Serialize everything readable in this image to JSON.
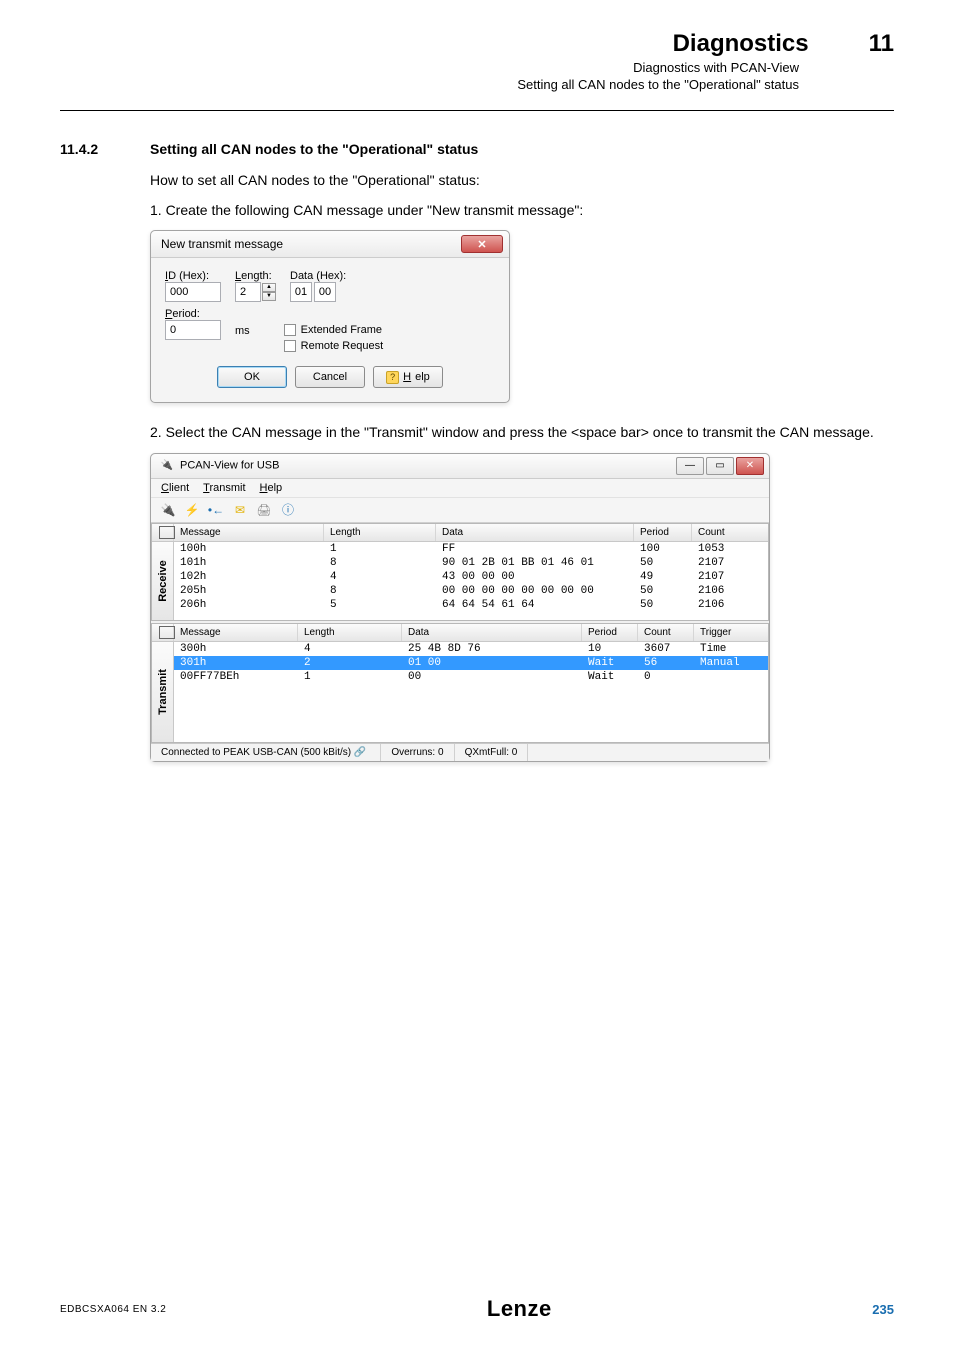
{
  "header": {
    "title": "Diagnostics",
    "chapter": "11",
    "sub1": "Diagnostics with PCAN-View",
    "sub2": "Setting all CAN nodes to the \"Operational\" status"
  },
  "section": {
    "num": "11.4.2",
    "title": "Setting all CAN nodes to the \"Operational\" status",
    "intro": "How to set all CAN nodes to the \"Operational\" status:",
    "step1": "1.   Create the following CAN message under \"New transmit message\":",
    "step2": "2.   Select the CAN message in the \"Transmit\" window and press the <space bar> once to transmit the CAN message."
  },
  "dialog1": {
    "title": "New transmit message",
    "id_label": "ID (Hex):",
    "id_value": "000",
    "len_label": "Length:",
    "len_value": "2",
    "data_label": "Data (Hex):",
    "data": [
      "01",
      "00"
    ],
    "period_label": "Period:",
    "period_value": "0",
    "ms": "ms",
    "chk1": "Extended Frame",
    "chk2": "Remote Request",
    "btn_ok": "OK",
    "btn_cancel": "Cancel",
    "btn_help": "Help"
  },
  "pcan": {
    "title": "PCAN-View for USB",
    "menu": {
      "client": "Client",
      "transmit": "Transmit",
      "help": "Help"
    },
    "receive_label": "Receive",
    "transmit_label": "Transmit",
    "cols_r": {
      "msg": "Message",
      "len": "Length",
      "data": "Data",
      "period": "Period",
      "count": "Count"
    },
    "cols_t": {
      "msg": "Message",
      "len": "Length",
      "data": "Data",
      "period": "Period",
      "count": "Count",
      "trigger": "Trigger"
    },
    "col_widths_r": {
      "msg": 150,
      "len": 112,
      "data": 198,
      "period": 58,
      "count": 58
    },
    "col_widths_t": {
      "msg": 124,
      "len": 104,
      "data": 180,
      "period": 56,
      "count": 56,
      "trigger": 56
    },
    "recv": [
      {
        "msg": "100h",
        "len": "1",
        "data": "FF",
        "period": "100",
        "count": "1053"
      },
      {
        "msg": "101h",
        "len": "8",
        "data": "90 01 2B 01 BB 01 46 01",
        "period": "50",
        "count": "2107"
      },
      {
        "msg": "102h",
        "len": "4",
        "data": "43 00 00 00",
        "period": "49",
        "count": "2107"
      },
      {
        "msg": "205h",
        "len": "8",
        "data": "00 00 00 00 00 00 00 00",
        "period": "50",
        "count": "2106"
      },
      {
        "msg": "206h",
        "len": "5",
        "data": "64 64 54 61 64",
        "period": "50",
        "count": "2106"
      }
    ],
    "xmit": [
      {
        "msg": "300h",
        "len": "4",
        "data": "25 4B 8D 76",
        "period": "10",
        "count": "3607",
        "trigger": "Time",
        "sel": false
      },
      {
        "msg": "301h",
        "len": "2",
        "data": "01 00",
        "period": "Wait",
        "count": "56",
        "trigger": "Manual",
        "sel": true
      },
      {
        "msg": "00FF77BEh",
        "len": "1",
        "data": "00",
        "period": "Wait",
        "count": "0",
        "trigger": "",
        "sel": false
      }
    ],
    "status": {
      "conn": "Connected to PEAK USB-CAN (500 kBit/s)",
      "over": "Overruns: 0",
      "qxmt": "QXmtFull: 0"
    }
  },
  "footer": {
    "docid": "EDBCSXA064 EN 3.2",
    "brand": "Lenze",
    "page": "235"
  },
  "colors": {
    "accent_blue": "#1a6eb0",
    "sel_row": "#3399ff",
    "close_red_top": "#e9a3a0",
    "close_red_bot": "#cf5450"
  }
}
